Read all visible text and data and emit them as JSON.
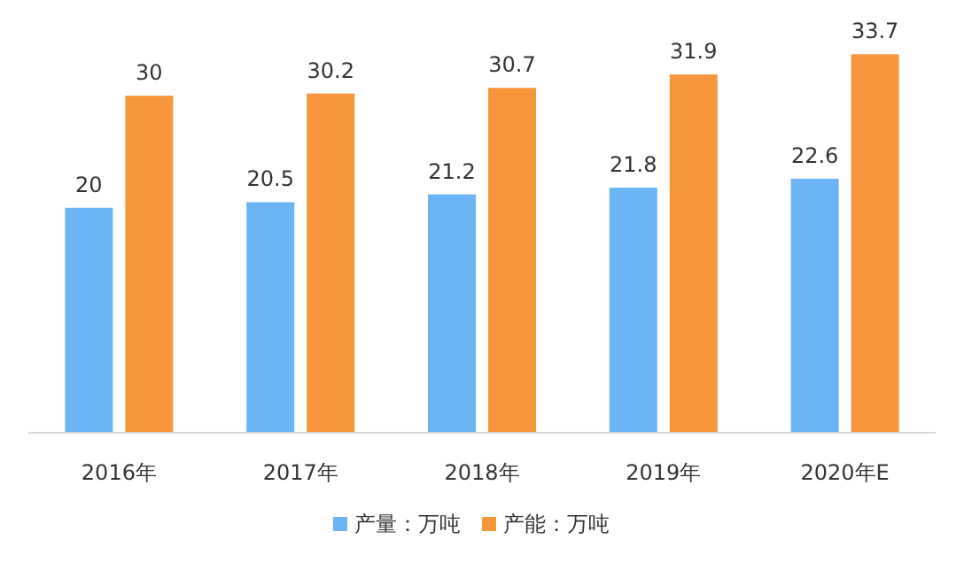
{
  "chart_data": {
    "type": "bar",
    "categories": [
      "2016年",
      "2017年",
      "2018年",
      "2019年",
      "2020年E"
    ],
    "series": [
      {
        "name": "产量：万吨",
        "color": "#6cb5f5",
        "values": [
          20,
          20.5,
          21.2,
          21.8,
          22.6
        ]
      },
      {
        "name": "产能：万吨",
        "color": "#f7963b",
        "values": [
          30,
          30.2,
          30.7,
          31.9,
          33.7
        ]
      }
    ],
    "data_labels": true,
    "legend": "bottom"
  }
}
